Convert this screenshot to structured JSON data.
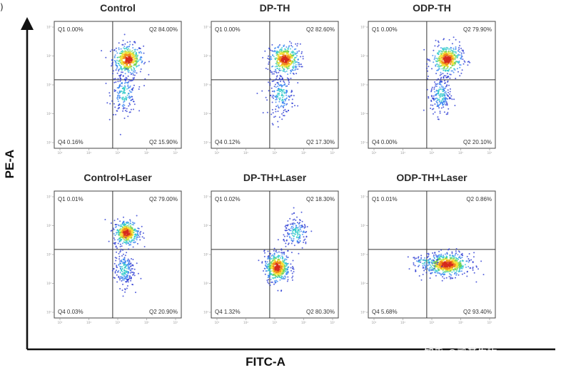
{
  "chart_data": {
    "type": "scatter",
    "subtype": "flow-cytometry-quadrant-grid",
    "edge_mark": ")",
    "x_axis_title": "FITC-A",
    "y_axis_title": "PE-A",
    "tick_labels": [
      "10³",
      "10⁴",
      "10⁵",
      "10⁶",
      "10⁷"
    ],
    "density_colors": [
      "#1f2fd0",
      "#2f7ff0",
      "#27c7c7",
      "#6fd34a",
      "#f4e23a",
      "#f08a1c",
      "#d62a1c"
    ],
    "panels": [
      {
        "title": "Control",
        "quadrants": {
          "q1": "Q1 0.00%",
          "q2": "Q2 84.00%",
          "q4": "Q4 0.16%",
          "q3": "Q2 15.90%"
        },
        "clusters": [
          {
            "x": 0.58,
            "y": 0.7,
            "sx": 0.06,
            "sy": 0.06,
            "n": 380,
            "core": true
          },
          {
            "x": 0.55,
            "y": 0.43,
            "sx": 0.05,
            "sy": 0.08,
            "n": 190,
            "core": false
          }
        ]
      },
      {
        "title": "DP-TH",
        "quadrants": {
          "q1": "Q1 0.00%",
          "q2": "Q2 82.60%",
          "q4": "Q4 0.12%",
          "q3": "Q2 17.30%"
        },
        "clusters": [
          {
            "x": 0.58,
            "y": 0.7,
            "sx": 0.06,
            "sy": 0.06,
            "n": 380,
            "core": true
          },
          {
            "x": 0.55,
            "y": 0.42,
            "sx": 0.05,
            "sy": 0.08,
            "n": 200,
            "core": false
          }
        ]
      },
      {
        "title": "ODP-TH",
        "quadrants": {
          "q1": "Q1 0.00%",
          "q2": "Q2 79.90%",
          "q4": "Q4 0.00%",
          "q3": "Q2 20.10%"
        },
        "clusters": [
          {
            "x": 0.62,
            "y": 0.7,
            "sx": 0.06,
            "sy": 0.06,
            "n": 370,
            "core": true
          },
          {
            "x": 0.57,
            "y": 0.42,
            "sx": 0.04,
            "sy": 0.08,
            "n": 210,
            "core": false
          }
        ]
      },
      {
        "title": "Control+Laser",
        "quadrants": {
          "q1": "Q1 0.01%",
          "q2": "Q2 79.00%",
          "q4": "Q4 0.03%",
          "q3": "Q2 20.90%"
        },
        "clusters": [
          {
            "x": 0.57,
            "y": 0.67,
            "sx": 0.05,
            "sy": 0.05,
            "n": 360,
            "core": true
          },
          {
            "x": 0.55,
            "y": 0.38,
            "sx": 0.04,
            "sy": 0.07,
            "n": 210,
            "core": false
          }
        ]
      },
      {
        "title": "DP-TH+Laser",
        "quadrants": {
          "q1": "Q1 0.02%",
          "q2": "Q2 18.30%",
          "q4": "Q4 1.32%",
          "q3": "Q2 80.30%"
        },
        "clusters": [
          {
            "x": 0.52,
            "y": 0.4,
            "sx": 0.05,
            "sy": 0.06,
            "n": 420,
            "core": true
          },
          {
            "x": 0.67,
            "y": 0.67,
            "sx": 0.05,
            "sy": 0.06,
            "n": 170,
            "core": false
          }
        ]
      },
      {
        "title": "ODP-TH+Laser",
        "quadrants": {
          "q1": "Q1 0.01%",
          "q2": "Q2 0.86%",
          "q4": "Q4 5.68%",
          "q3": "Q2 93.40%"
        },
        "clusters": [
          {
            "x": 0.62,
            "y": 0.42,
            "sx": 0.09,
            "sy": 0.045,
            "n": 560,
            "core": true
          },
          {
            "x": 0.44,
            "y": 0.44,
            "sx": 0.06,
            "sy": 0.03,
            "n": 60,
            "core": false
          }
        ]
      }
    ]
  },
  "watermark": "知乎 @凯基生物"
}
